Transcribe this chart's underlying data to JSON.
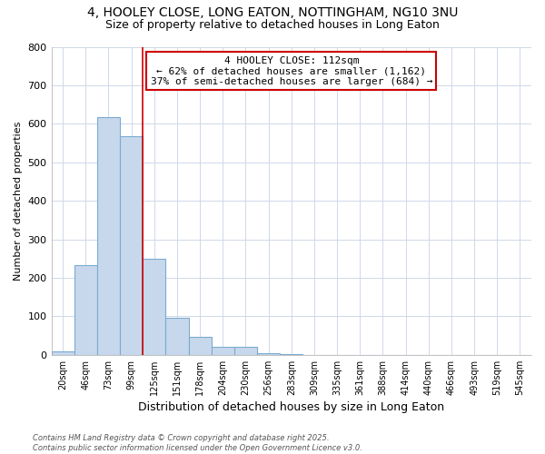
{
  "title_line1": "4, HOOLEY CLOSE, LONG EATON, NOTTINGHAM, NG10 3NU",
  "title_line2": "Size of property relative to detached houses in Long Eaton",
  "xlabel": "Distribution of detached houses by size in Long Eaton",
  "ylabel": "Number of detached properties",
  "categories": [
    "20sqm",
    "46sqm",
    "73sqm",
    "99sqm",
    "125sqm",
    "151sqm",
    "178sqm",
    "204sqm",
    "230sqm",
    "256sqm",
    "283sqm",
    "309sqm",
    "335sqm",
    "361sqm",
    "388sqm",
    "414sqm",
    "440sqm",
    "466sqm",
    "493sqm",
    "519sqm",
    "545sqm"
  ],
  "values": [
    8,
    232,
    617,
    567,
    250,
    97,
    47,
    20,
    20,
    5,
    3,
    0,
    0,
    0,
    0,
    0,
    0,
    0,
    0,
    0,
    0
  ],
  "bar_color": "#c8d8ec",
  "bar_edge_color": "#7aaad0",
  "property_line_x": 3.5,
  "annotation_text": "4 HOOLEY CLOSE: 112sqm\n← 62% of detached houses are smaller (1,162)\n37% of semi-detached houses are larger (684) →",
  "annotation_box_color": "#ffffff",
  "annotation_box_edge": "#cc0000",
  "property_line_color": "#cc0000",
  "background_color": "#ffffff",
  "plot_bg_color": "#ffffff",
  "footer_text": "Contains HM Land Registry data © Crown copyright and database right 2025.\nContains public sector information licensed under the Open Government Licence v3.0.",
  "ylim": [
    0,
    800
  ],
  "yticks": [
    0,
    100,
    200,
    300,
    400,
    500,
    600,
    700,
    800
  ],
  "grid_color": "#d0d8e8",
  "title_fontsize": 10,
  "subtitle_fontsize": 9
}
